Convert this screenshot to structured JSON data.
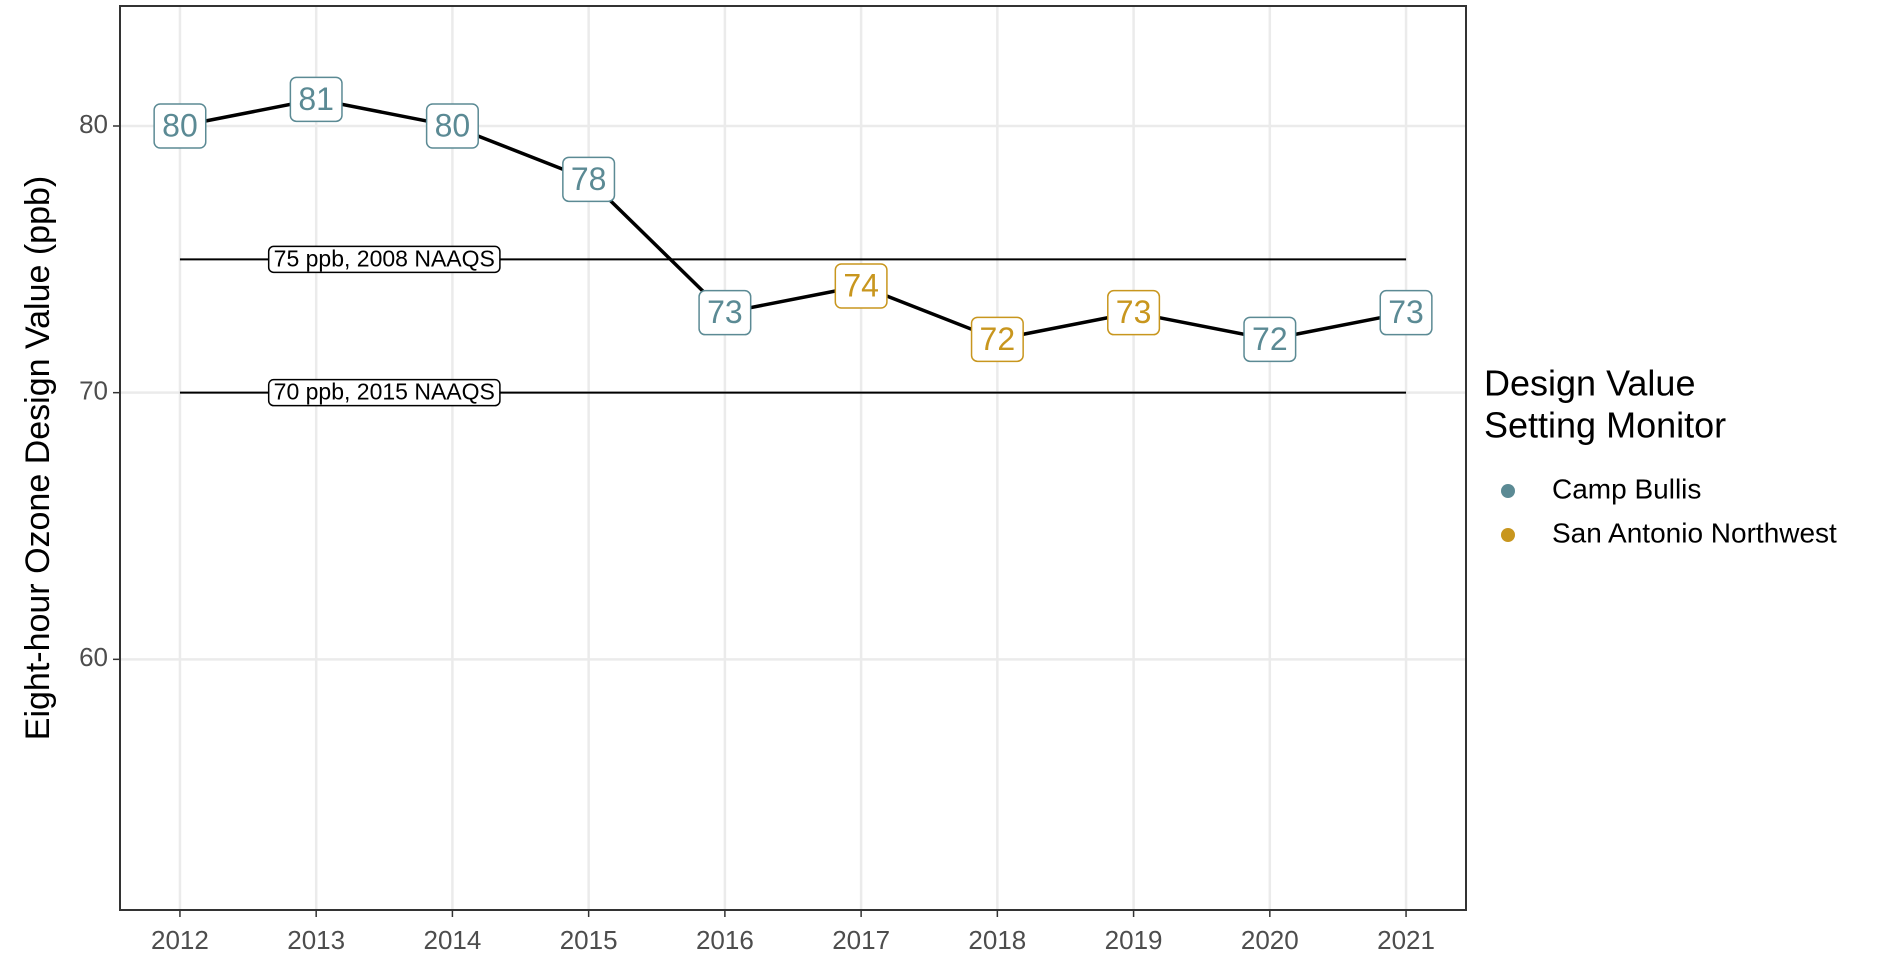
{
  "chart_data": {
    "type": "line",
    "y_label": "Eight-hour Ozone Design Value (ppb)",
    "x": [
      2012,
      2013,
      2014,
      2015,
      2016,
      2017,
      2018,
      2019,
      2020,
      2021
    ],
    "values": [
      80,
      81,
      80,
      78,
      73,
      74,
      72,
      73,
      72,
      73
    ],
    "line_color": "#000000",
    "point_monitor": [
      0,
      0,
      0,
      0,
      0,
      1,
      1,
      1,
      0,
      0
    ],
    "series": [
      {
        "name": "Camp Bullis",
        "color": "#5b8a94"
      },
      {
        "name": "San Antonio Northwest",
        "color": "#c8961e"
      }
    ],
    "legend_title": [
      "Design Value",
      "Setting Monitor"
    ],
    "legend": "right",
    "hlines": [
      {
        "value": 75,
        "label": "75 ppb, 2008 NAAQS"
      },
      {
        "value": 70,
        "label": "70 ppb, 2015 NAAQS"
      }
    ],
    "xlim": [
      2011.56,
      2021.44
    ],
    "xticks": [
      2012,
      2013,
      2014,
      2015,
      2016,
      2017,
      2018,
      2019,
      2020,
      2021
    ],
    "ylim": [
      50.6,
      84.5
    ],
    "yticks": [
      60,
      70,
      80
    ],
    "grid": true
  }
}
